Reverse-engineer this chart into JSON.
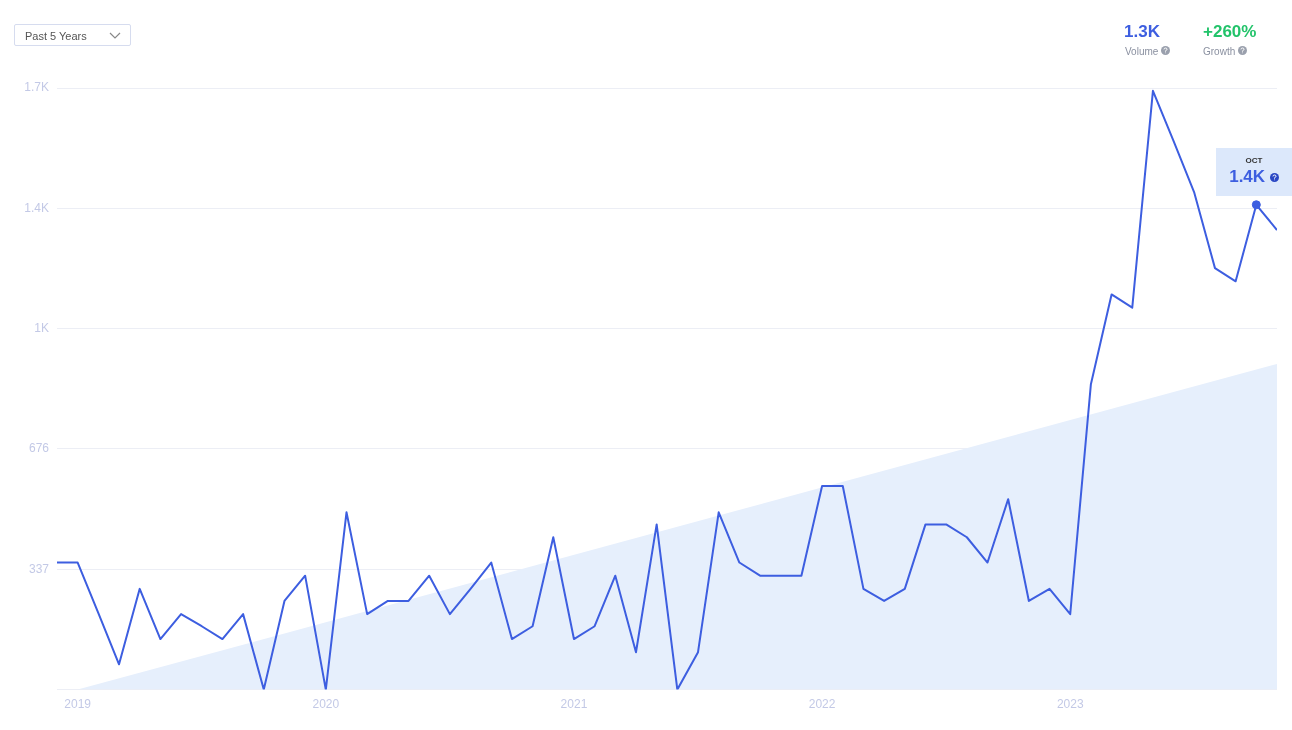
{
  "chart_data": {
    "type": "line",
    "x": [
      "2018-12",
      "2019-01",
      "2019-02",
      "2019-03",
      "2019-04",
      "2019-05",
      "2019-06",
      "2019-07",
      "2019-08",
      "2019-09",
      "2019-10",
      "2019-11",
      "2019-12",
      "2020-01",
      "2020-02",
      "2020-03",
      "2020-04",
      "2020-05",
      "2020-06",
      "2020-07",
      "2020-08",
      "2020-09",
      "2020-10",
      "2020-11",
      "2020-12",
      "2021-01",
      "2021-02",
      "2021-03",
      "2021-04",
      "2021-05",
      "2021-06",
      "2021-07",
      "2021-08",
      "2021-09",
      "2021-10",
      "2021-11",
      "2021-12",
      "2022-01",
      "2022-02",
      "2022-03",
      "2022-04",
      "2022-05",
      "2022-06",
      "2022-07",
      "2022-08",
      "2022-09",
      "2022-10",
      "2022-11",
      "2022-12",
      "2023-01",
      "2023-02",
      "2023-03",
      "2023-04",
      "2023-05",
      "2023-06",
      "2023-07",
      "2023-08",
      "2023-09",
      "2023-10",
      "2023-11"
    ],
    "series": [
      {
        "type": "area",
        "x": [
          "2019-01",
          "2023-11"
        ],
        "values": [
          0,
          915
        ],
        "color": "#e6effc"
      },
      {
        "color": "#3d5ee0",
        "values": [
          357,
          357,
          215,
          71,
          283,
          142,
          212,
          178,
          142,
          212,
          0,
          249,
          320,
          0,
          498,
          212,
          249,
          249,
          320,
          212,
          283,
          357,
          142,
          178,
          428,
          142,
          178,
          320,
          105,
          464,
          0,
          105,
          498,
          357,
          320,
          320,
          320,
          572,
          572,
          283,
          249,
          283,
          464,
          464,
          428,
          357,
          535,
          249,
          283,
          212,
          858,
          1110,
          1073,
          1682,
          1541,
          1396,
          1184,
          1147,
          1362,
          1291
        ]
      },
      {
        "type": "scatter",
        "x": [
          "2023-10"
        ],
        "values": [
          1362
        ],
        "color": "#3d5ee0",
        "marker": "circle"
      }
    ],
    "xlim": [
      "2018-12",
      "2023-11"
    ],
    "xticks": [
      {
        "value": "2019-01",
        "label": "2019"
      },
      {
        "value": "2020-01",
        "label": "2020"
      },
      {
        "value": "2021-01",
        "label": "2021"
      },
      {
        "value": "2022-01",
        "label": "2022"
      },
      {
        "value": "2023-01",
        "label": "2023"
      }
    ],
    "ylim": [
      0,
      1690
    ],
    "yticks": [
      {
        "value": 0,
        "label": null
      },
      337,
      676,
      {
        "value": 1014,
        "label": "1K"
      },
      {
        "value": 1352,
        "label": "1.4K"
      },
      {
        "value": 1690,
        "label": "1.7K"
      }
    ],
    "grid": "y",
    "marker": "none",
    "line_style": "solid",
    "annotations": [
      "Past 5 Years",
      "1.3K",
      "Volume",
      "+260%",
      "Growth",
      "OCT",
      "1.4K"
    ]
  }
}
